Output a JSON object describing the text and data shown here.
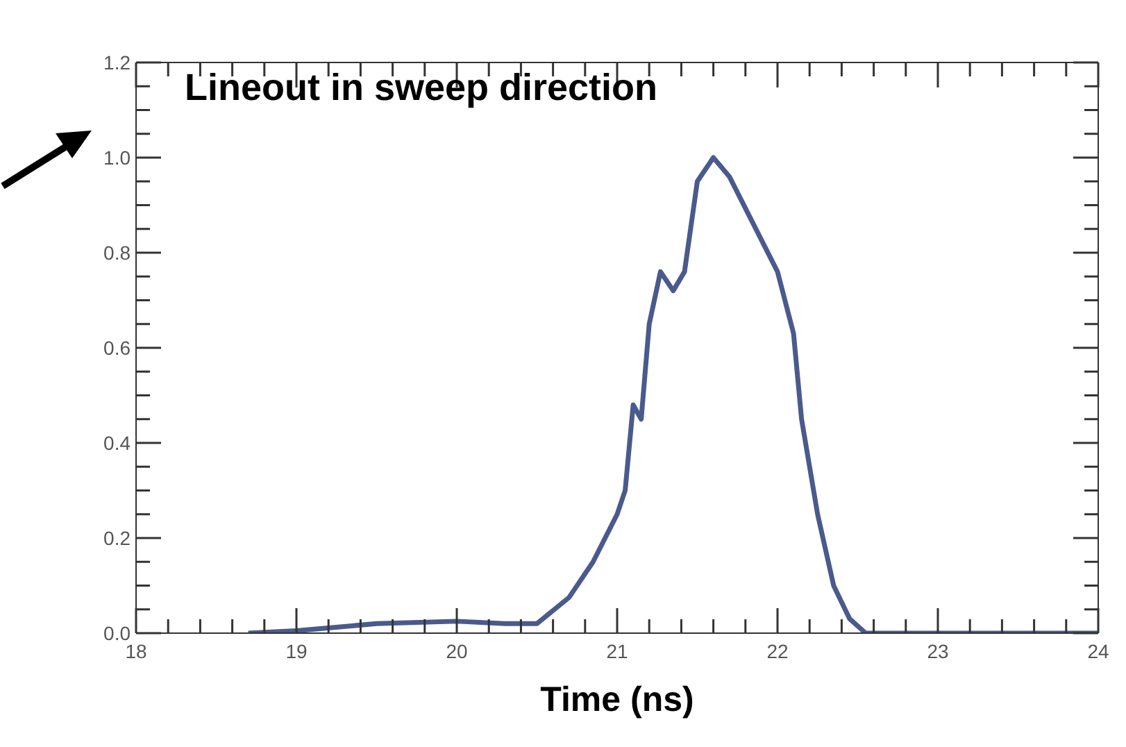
{
  "chart_data": {
    "type": "line",
    "title": "Lineout in sweep direction",
    "xlabel": "Time (ns)",
    "x": [
      18.7,
      19.0,
      19.5,
      20.0,
      20.3,
      20.5,
      20.7,
      20.85,
      21.0,
      21.05,
      21.1,
      21.15,
      21.2,
      21.27,
      21.35,
      21.42,
      21.5,
      21.6,
      21.7,
      21.85,
      22.0,
      22.1,
      22.15,
      22.25,
      22.35,
      22.45,
      22.55,
      23.0,
      24.0
    ],
    "series": [
      {
        "color": "#4a5a8c",
        "values": [
          0.0,
          0.005,
          0.02,
          0.025,
          0.02,
          0.02,
          0.075,
          0.15,
          0.25,
          0.3,
          0.48,
          0.45,
          0.65,
          0.76,
          0.72,
          0.76,
          0.95,
          1.0,
          0.96,
          0.86,
          0.76,
          0.63,
          0.45,
          0.25,
          0.1,
          0.03,
          0.0,
          0.0,
          0.0
        ]
      }
    ],
    "xlim": [
      18,
      24
    ],
    "ylim": [
      0,
      1.2
    ],
    "xticks": [
      18,
      {
        "value": 18.2,
        "label": null
      },
      {
        "value": 18.4,
        "label": null
      },
      {
        "value": 18.6,
        "label": null
      },
      {
        "value": 18.8,
        "label": null
      },
      19,
      {
        "value": 19.2,
        "label": null
      },
      {
        "value": 19.4,
        "label": null
      },
      {
        "value": 19.6,
        "label": null
      },
      {
        "value": 19.8,
        "label": null
      },
      20,
      {
        "value": 20.2,
        "label": null
      },
      {
        "value": 20.4,
        "label": null
      },
      {
        "value": 20.6,
        "label": null
      },
      {
        "value": 20.8,
        "label": null
      },
      21,
      {
        "value": 21.2,
        "label": null
      },
      {
        "value": 21.4,
        "label": null
      },
      {
        "value": 21.6,
        "label": null
      },
      {
        "value": 21.8,
        "label": null
      },
      22,
      {
        "value": 22.2,
        "label": null
      },
      {
        "value": 22.4,
        "label": null
      },
      {
        "value": 22.6,
        "label": null
      },
      {
        "value": 22.8,
        "label": null
      },
      23,
      {
        "value": 23.2,
        "label": null
      },
      {
        "value": 23.4,
        "label": null
      },
      {
        "value": 23.6,
        "label": null
      },
      {
        "value": 23.8,
        "label": null
      },
      24
    ],
    "yticks": [
      {
        "value": 0,
        "label": "0.0"
      },
      {
        "value": 0.05,
        "label": null
      },
      {
        "value": 0.1,
        "label": null
      },
      {
        "value": 0.15,
        "label": null
      },
      {
        "value": 0.2,
        "label": "0.2"
      },
      {
        "value": 0.25,
        "label": null
      },
      {
        "value": 0.3,
        "label": null
      },
      {
        "value": 0.35,
        "label": null
      },
      {
        "value": 0.4,
        "label": "0.4"
      },
      {
        "value": 0.45,
        "label": null
      },
      {
        "value": 0.5,
        "label": null
      },
      {
        "value": 0.55,
        "label": null
      },
      {
        "value": 0.6,
        "label": "0.6"
      },
      {
        "value": 0.65,
        "label": null
      },
      {
        "value": 0.7,
        "label": null
      },
      {
        "value": 0.75,
        "label": null
      },
      {
        "value": 0.8,
        "label": "0.8"
      },
      {
        "value": 0.85,
        "label": null
      },
      {
        "value": 0.9,
        "label": null
      },
      {
        "value": 0.95,
        "label": null
      },
      {
        "value": 1.0,
        "label": "1.0"
      },
      {
        "value": 1.05,
        "label": null
      },
      {
        "value": 1.1,
        "label": null
      },
      {
        "value": 1.15,
        "label": null
      },
      {
        "value": 1.2,
        "label": "1.2"
      }
    ],
    "tick_labels": "xy"
  }
}
